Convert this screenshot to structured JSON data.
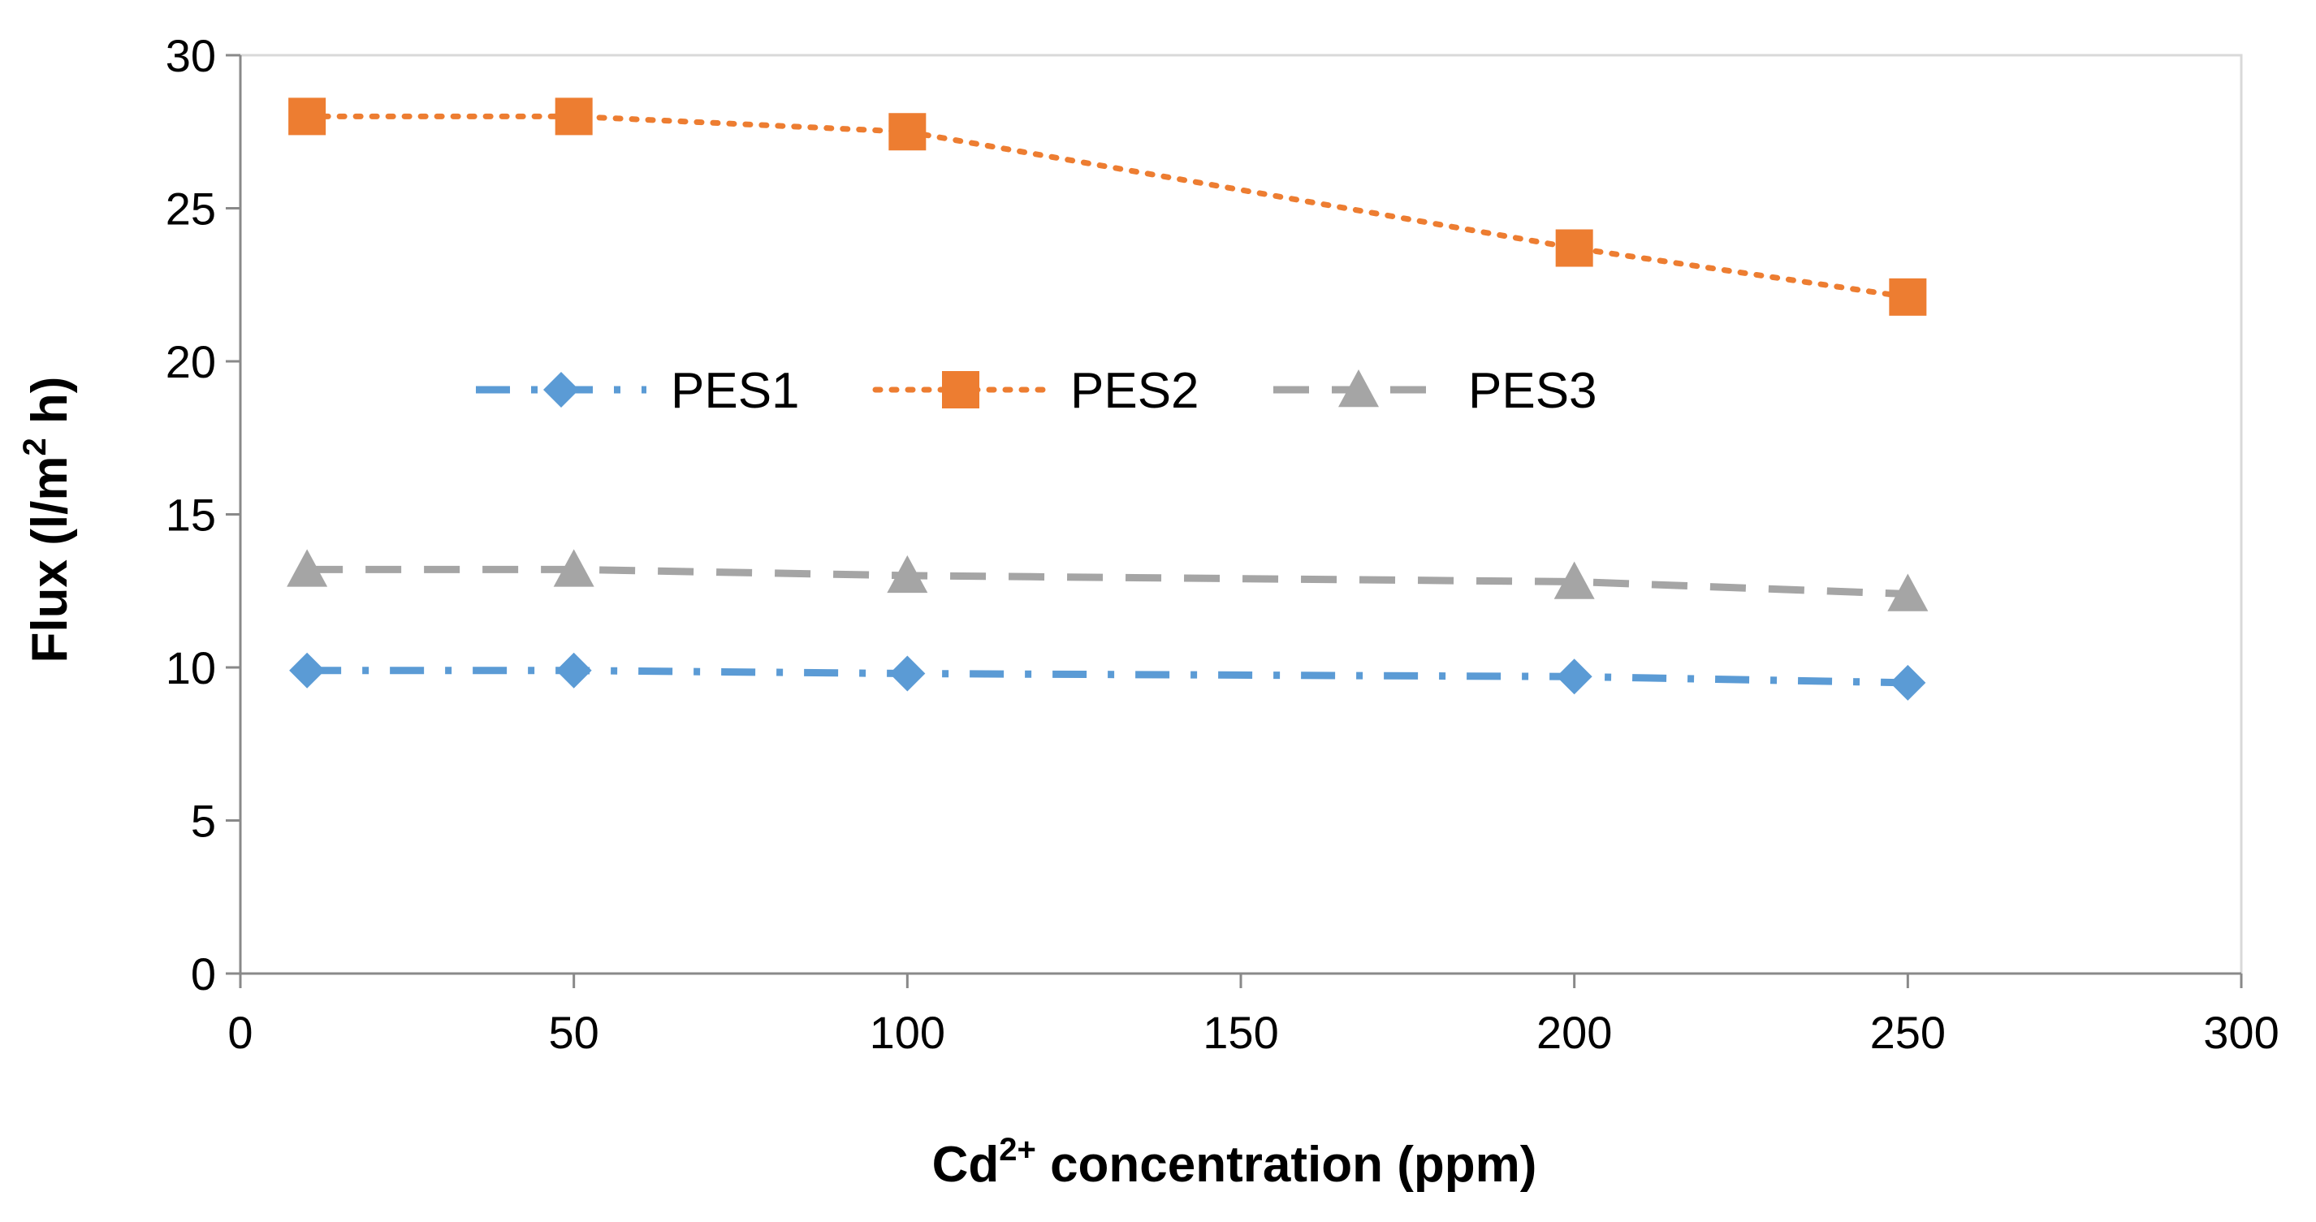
{
  "chart_data": {
    "type": "line",
    "xlabel": {
      "main": "Cd",
      "sup": "2+",
      "rest": " concentration (ppm)"
    },
    "ylabel": {
      "main": "Flux (l/m",
      "sup": "2",
      "rest": " h)"
    },
    "xlim": [
      0,
      300
    ],
    "ylim": [
      0,
      30
    ],
    "xticks": [
      0,
      50,
      100,
      150,
      200,
      250,
      300
    ],
    "yticks": [
      0,
      5,
      10,
      15,
      20,
      25,
      30
    ],
    "x": [
      10,
      50,
      100,
      200,
      250
    ],
    "grid": false,
    "legend_position": "inside-upper-center",
    "series": [
      {
        "name": "PES1",
        "values": [
          9.9,
          9.9,
          9.8,
          9.7,
          9.5
        ],
        "color": "#5B9BD5",
        "marker": "diamond",
        "line": "dash-dot"
      },
      {
        "name": "PES2",
        "values": [
          28.0,
          28.0,
          27.5,
          23.7,
          22.1
        ],
        "color": "#ED7D31",
        "marker": "square",
        "line": "dotted"
      },
      {
        "name": "PES3",
        "values": [
          13.2,
          13.2,
          13.0,
          12.8,
          12.4
        ],
        "color": "#A5A5A5",
        "marker": "triangle",
        "line": "dashed"
      }
    ]
  }
}
